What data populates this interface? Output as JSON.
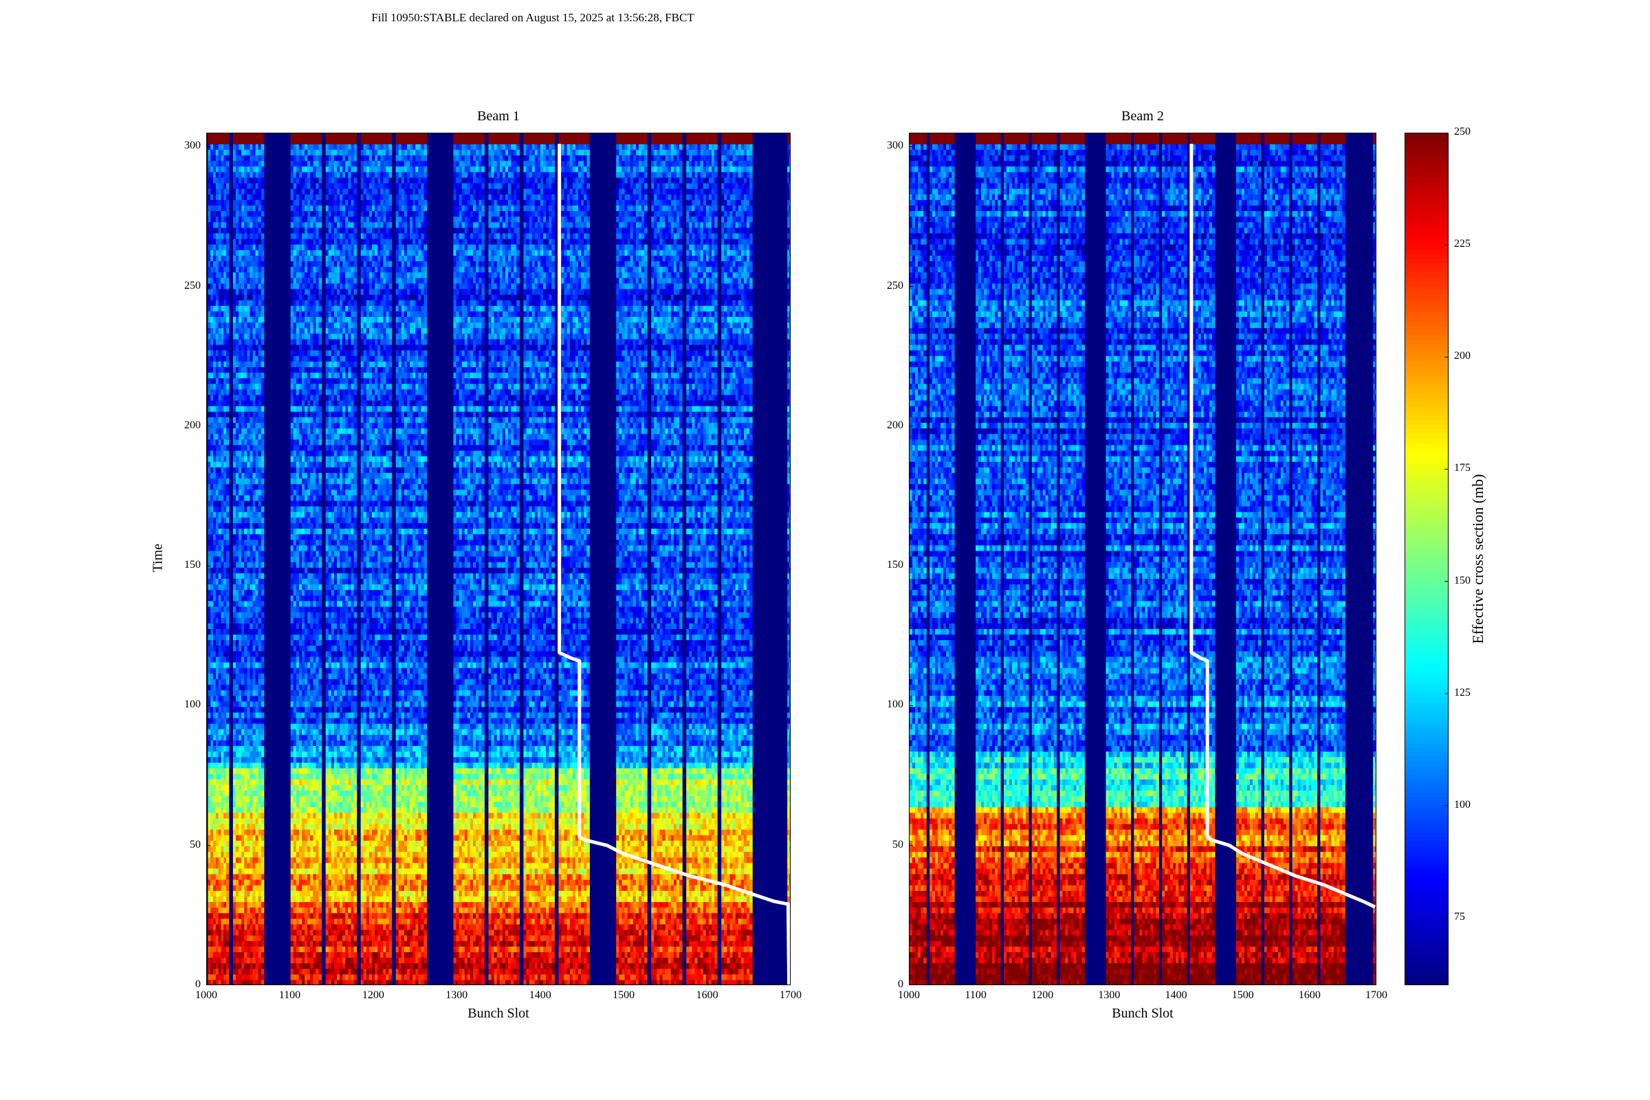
{
  "figure": {
    "suptitle": "Fill 10950:STABLE declared on August 15, 2025 at 13:56:28, FBCT"
  },
  "colors": {
    "colormap": "jet",
    "jet_stops": [
      "#00007f",
      "#0000ff",
      "#007fff",
      "#00ffff",
      "#7fff7f",
      "#ffff00",
      "#ff7f00",
      "#ff0000",
      "#7f0000"
    ],
    "overlay_line": "#ffffff",
    "background": "#ffffff"
  },
  "chart_data": [
    {
      "type": "heatmap",
      "title": "Beam 1",
      "xlabel": "Bunch Slot",
      "ylabel": "Time",
      "xlim": [
        1000,
        1700
      ],
      "ylim": [
        0,
        305
      ],
      "xticks": [
        1000,
        1100,
        1200,
        1300,
        1400,
        1500,
        1600,
        1700
      ],
      "yticks": [
        0,
        50,
        100,
        150,
        200,
        250,
        300
      ],
      "filled_bunch_ranges": [
        [
          1002,
          1026
        ],
        [
          1032,
          1068
        ],
        [
          1101,
          1137
        ],
        [
          1143,
          1179
        ],
        [
          1185,
          1221
        ],
        [
          1227,
          1263
        ],
        [
          1296,
          1332
        ],
        [
          1338,
          1374
        ],
        [
          1380,
          1416
        ],
        [
          1422,
          1458
        ],
        [
          1491,
          1527
        ],
        [
          1533,
          1569
        ],
        [
          1575,
          1611
        ],
        [
          1617,
          1653
        ],
        [
          1696,
          1700
        ]
      ],
      "value_profile_by_time": [
        [
          0,
          230
        ],
        [
          28,
          215
        ],
        [
          30,
          195
        ],
        [
          50,
          190
        ],
        [
          60,
          175
        ],
        [
          78,
          150
        ],
        [
          80,
          110
        ],
        [
          100,
          100
        ],
        [
          300,
          95
        ],
        [
          305,
          250
        ]
      ],
      "overlay_line": [
        [
          1423,
          301
        ],
        [
          1423,
          119
        ],
        [
          1437,
          117
        ],
        [
          1447,
          116
        ],
        [
          1447,
          53
        ],
        [
          1453,
          52
        ],
        [
          1480,
          50
        ],
        [
          1500,
          47
        ],
        [
          1540,
          43
        ],
        [
          1580,
          39
        ],
        [
          1620,
          36
        ],
        [
          1660,
          32
        ],
        [
          1680,
          30
        ],
        [
          1697,
          29
        ],
        [
          1698,
          0
        ]
      ]
    },
    {
      "type": "heatmap",
      "title": "Beam 2",
      "xlabel": "Bunch Slot",
      "ylabel": "",
      "xlim": [
        1000,
        1700
      ],
      "ylim": [
        0,
        305
      ],
      "xticks": [
        1000,
        1100,
        1200,
        1300,
        1400,
        1500,
        1600,
        1700
      ],
      "yticks": [
        0,
        50,
        100,
        150,
        200,
        250,
        300
      ],
      "filled_bunch_ranges": [
        [
          1001,
          1025
        ],
        [
          1031,
          1067
        ],
        [
          1100,
          1136
        ],
        [
          1142,
          1178
        ],
        [
          1184,
          1220
        ],
        [
          1226,
          1262
        ],
        [
          1295,
          1331
        ],
        [
          1337,
          1373
        ],
        [
          1379,
          1415
        ],
        [
          1421,
          1457
        ],
        [
          1490,
          1526
        ],
        [
          1532,
          1568
        ],
        [
          1574,
          1610
        ],
        [
          1616,
          1652
        ],
        [
          1695,
          1700
        ]
      ],
      "value_profile_by_time": [
        [
          0,
          245
        ],
        [
          30,
          240
        ],
        [
          40,
          220
        ],
        [
          62,
          200
        ],
        [
          64,
          140
        ],
        [
          80,
          130
        ],
        [
          85,
          110
        ],
        [
          120,
          100
        ],
        [
          300,
          95
        ],
        [
          305,
          250
        ]
      ],
      "overlay_line": [
        [
          1423,
          301
        ],
        [
          1423,
          119
        ],
        [
          1437,
          117
        ],
        [
          1447,
          116
        ],
        [
          1447,
          53
        ],
        [
          1453,
          52
        ],
        [
          1480,
          50
        ],
        [
          1500,
          47
        ],
        [
          1540,
          43
        ],
        [
          1580,
          39
        ],
        [
          1620,
          36
        ],
        [
          1660,
          32
        ],
        [
          1680,
          30
        ],
        [
          1698,
          28
        ]
      ]
    }
  ],
  "colorbar": {
    "label": "Effective cross section (mb)",
    "range": [
      60,
      250
    ],
    "ticks": [
      75,
      100,
      125,
      150,
      175,
      200,
      225,
      250
    ]
  }
}
